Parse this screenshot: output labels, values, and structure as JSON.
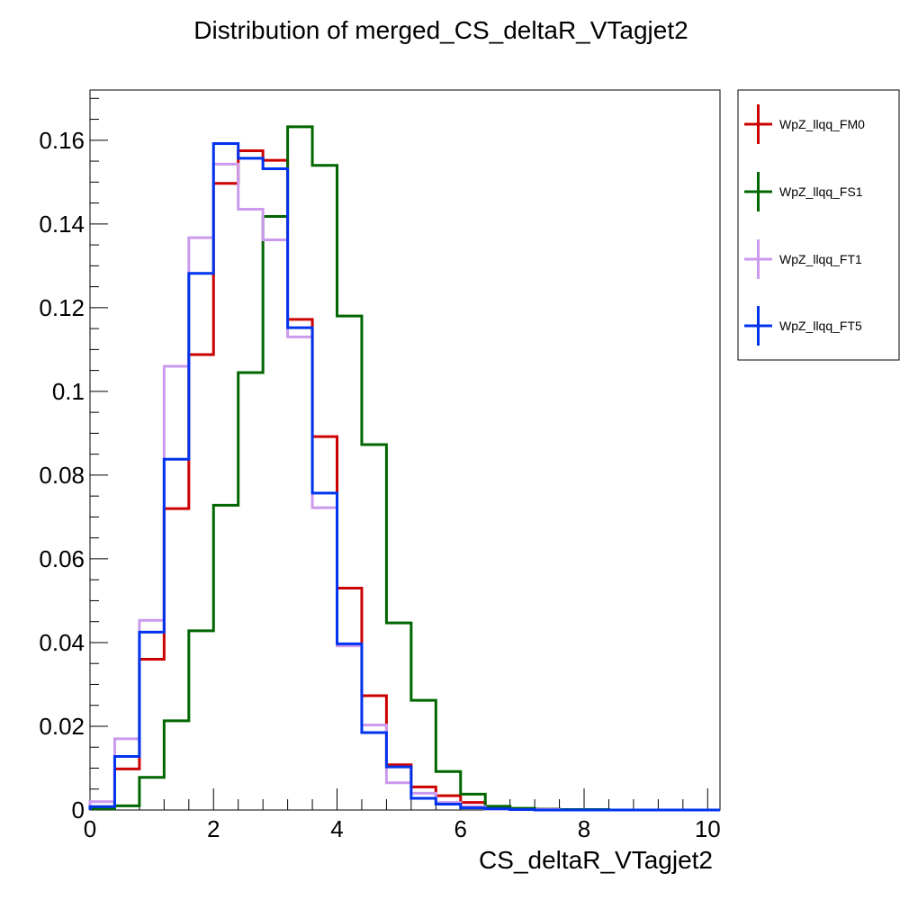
{
  "chart_data": {
    "type": "histogram-step",
    "title": "Distribution of merged_CS_deltaR_VTagjet2",
    "xlabel": "CS_deltaR_VTagjet2",
    "ylabel": "",
    "xlim": [
      0,
      10.2
    ],
    "ylim": [
      0,
      0.172
    ],
    "xticks": [
      0,
      2,
      4,
      6,
      8,
      10
    ],
    "xtick_labels": [
      "0",
      "2",
      "4",
      "6",
      "8",
      "10"
    ],
    "yticks": [
      0,
      0.02,
      0.04,
      0.06,
      0.08,
      0.1,
      0.12,
      0.14,
      0.16
    ],
    "ytick_labels": [
      "0",
      "0.02",
      "0.04",
      "0.06",
      "0.08",
      "0.1",
      "0.12",
      "0.14",
      "0.16"
    ],
    "grid": false,
    "legend_position": "right-outside-top",
    "bin_edges": [
      0,
      0.4,
      0.8,
      1.2,
      1.6,
      2.0,
      2.4,
      2.8,
      3.2,
      3.6,
      4.0,
      4.4,
      4.8,
      5.2,
      5.6,
      6.0,
      6.4,
      6.8,
      7.2,
      7.6,
      8.0,
      8.4,
      8.8,
      9.2,
      9.6,
      10.0,
      10.2
    ],
    "series": [
      {
        "name": "WpZ_llqq_FM0",
        "color": "#cc0000",
        "values": [
          0.0005,
          0.0098,
          0.036,
          0.072,
          0.1088,
          0.1497,
          0.1575,
          0.1552,
          0.1172,
          0.0892,
          0.053,
          0.0273,
          0.0108,
          0.0055,
          0.0034,
          0.0018,
          0.0007,
          0.0003,
          0.0002,
          0.0001,
          0.0001,
          0.0,
          0.0,
          0.0,
          0.0,
          0.0
        ]
      },
      {
        "name": "WpZ_llqq_FS1",
        "color": "#006600",
        "values": [
          0.0003,
          0.001,
          0.0078,
          0.0213,
          0.0428,
          0.0728,
          0.1045,
          0.1418,
          0.1632,
          0.154,
          0.118,
          0.0873,
          0.0447,
          0.0262,
          0.0092,
          0.0038,
          0.0009,
          0.0004,
          0.0002,
          0.0001,
          0.0001,
          0.0,
          0.0,
          0.0,
          0.0,
          0.0
        ]
      },
      {
        "name": "WpZ_llqq_FT1",
        "color": "#cc99ee",
        "values": [
          0.002,
          0.017,
          0.0453,
          0.106,
          0.1367,
          0.1543,
          0.1435,
          0.1362,
          0.113,
          0.0722,
          0.0392,
          0.0203,
          0.0065,
          0.004,
          0.0018,
          0.0008,
          0.0002,
          0.0001,
          0.0001,
          0.0,
          0.0,
          0.0,
          0.0,
          0.0,
          0.0,
          0.0
        ]
      },
      {
        "name": "WpZ_llqq_FT5",
        "color": "#0033ee",
        "values": [
          0.0008,
          0.0128,
          0.0425,
          0.0838,
          0.1282,
          0.1592,
          0.1557,
          0.1532,
          0.1152,
          0.0757,
          0.0397,
          0.0185,
          0.0103,
          0.0028,
          0.0014,
          0.0005,
          0.0003,
          0.0001,
          0.0,
          0.0,
          0.0,
          0.0,
          0.0,
          0.0,
          0.0,
          0.0
        ]
      }
    ]
  }
}
